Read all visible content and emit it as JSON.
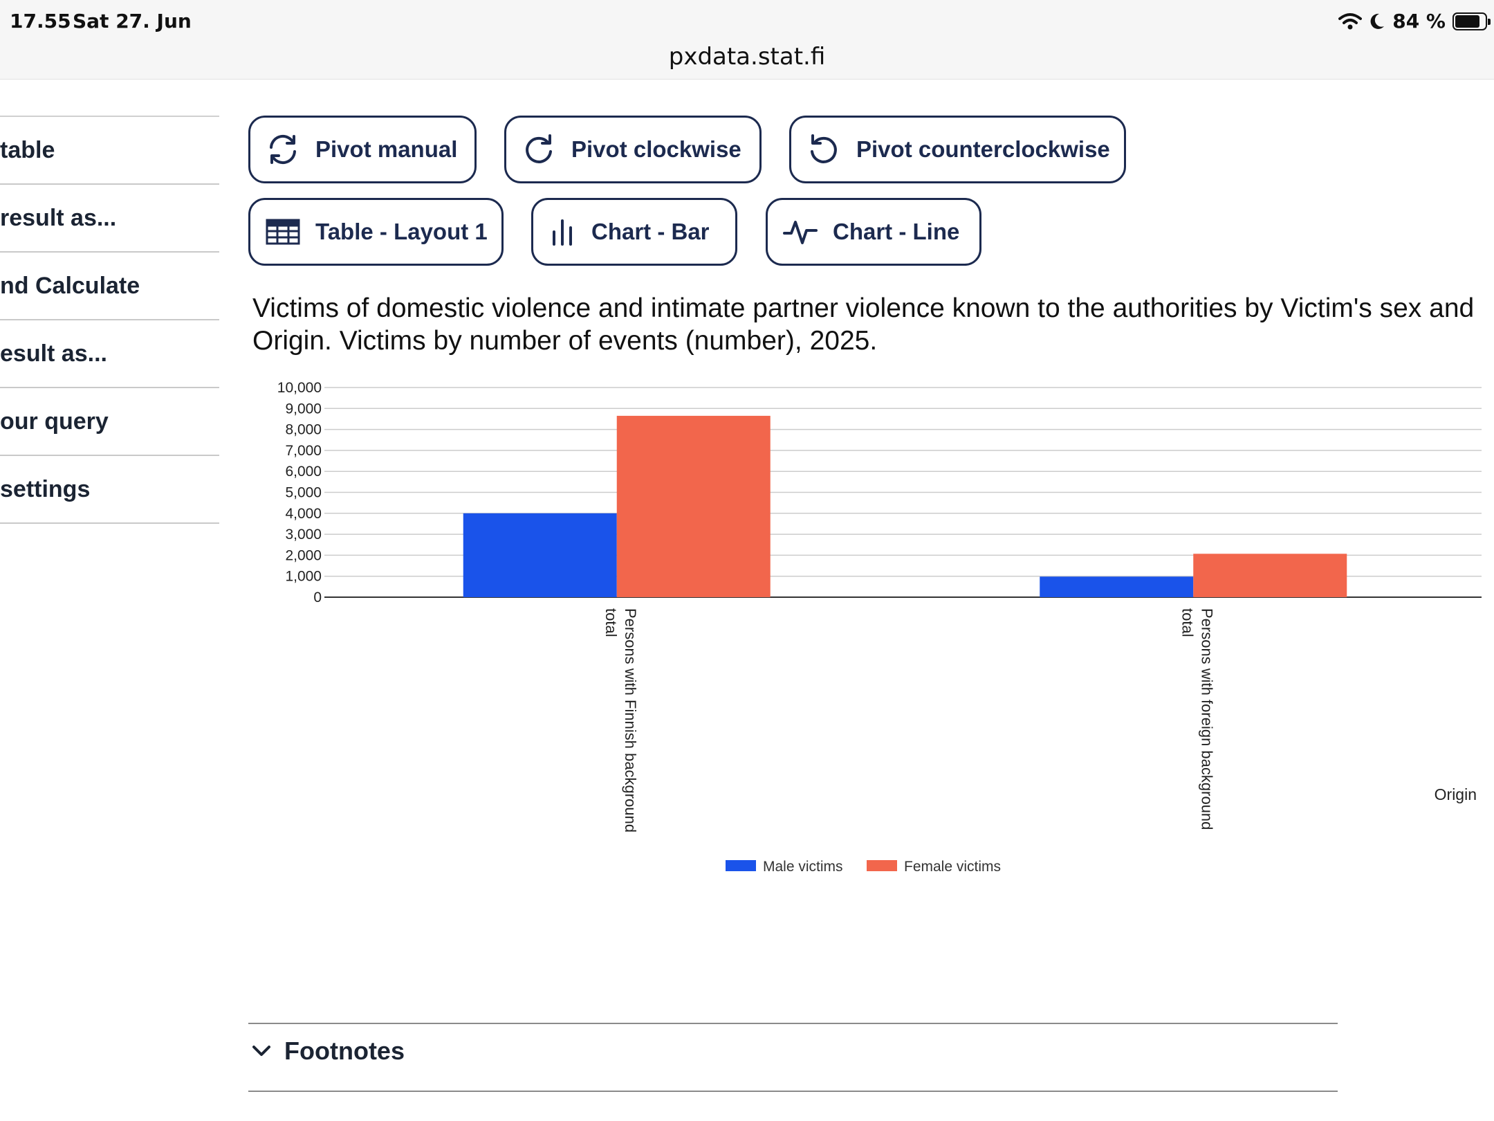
{
  "status_bar": {
    "time": "17.55",
    "date": "Sat 27. Jun",
    "battery": "84 %",
    "battery_level": 0.84,
    "url": "pxdata.stat.fi"
  },
  "sidebar": {
    "items": [
      {
        "label": "table"
      },
      {
        "label": "result as..."
      },
      {
        "label": "nd Calculate"
      },
      {
        "label": "esult as..."
      },
      {
        "label": "our query"
      },
      {
        "label": "settings"
      }
    ]
  },
  "toolbar": {
    "pivot_manual": "Pivot manual",
    "pivot_clockwise": "Pivot clockwise",
    "pivot_counterclockwise": "Pivot counterclockwise",
    "table_layout": "Table - Layout 1",
    "chart_bar": "Chart - Bar",
    "chart_line": "Chart - Line",
    "accent": "#1c2a4f"
  },
  "chart_data": {
    "type": "bar",
    "title": "Victims of domestic violence and intimate partner violence known to the authorities by Victim's sex and Origin. Victims by number of events (number), 2025.",
    "categories": [
      "Persons with Finnish background total",
      "Persons with foreign background total"
    ],
    "series": [
      {
        "name": "Male victims",
        "values": [
          4000,
          980
        ],
        "color": "#1a53ea"
      },
      {
        "name": "Female victims",
        "values": [
          8650,
          2070
        ],
        "color": "#f2664c"
      }
    ],
    "xlabel": "Origin",
    "ylabel": "",
    "ylim": [
      0,
      10000
    ],
    "yticks": [
      0,
      1000,
      2000,
      3000,
      4000,
      5000,
      6000,
      7000,
      8000,
      9000,
      10000
    ],
    "ytick_labels": [
      "0",
      "1,000",
      "2,000",
      "3,000",
      "4,000",
      "5,000",
      "6,000",
      "7,000",
      "8,000",
      "9,000",
      "10,000"
    ],
    "grid": true,
    "legend_position": "bottom"
  },
  "footnotes": {
    "label": "Footnotes"
  }
}
